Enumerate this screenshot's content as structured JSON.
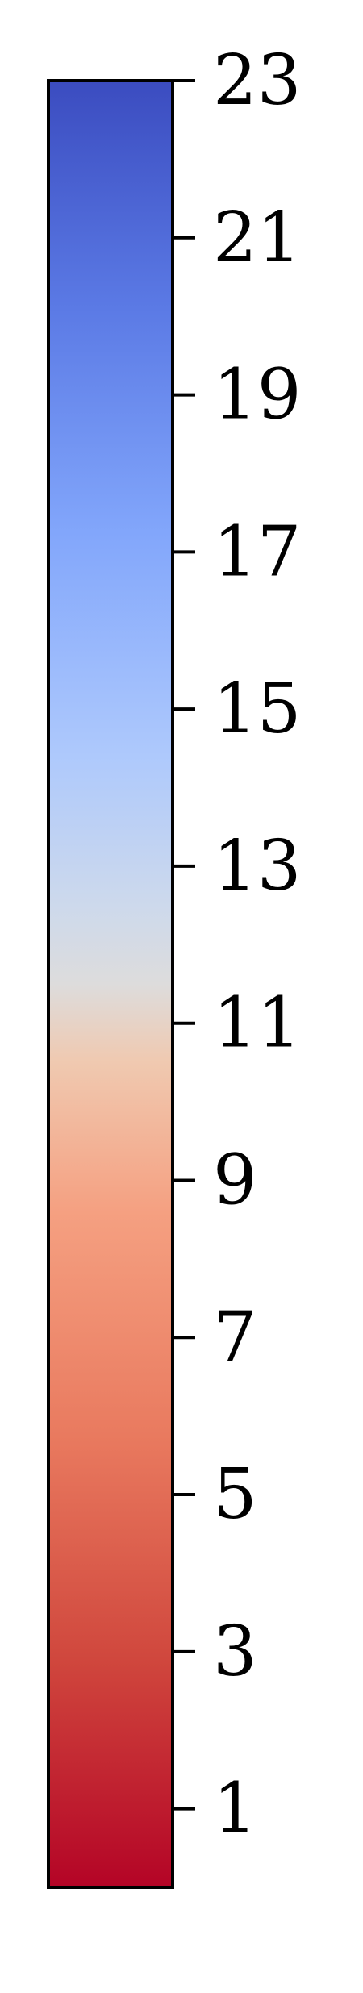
{
  "chart_data": {
    "type": "colorbar",
    "colormap": "coolwarm",
    "orientation": "vertical",
    "range": [
      0,
      23
    ],
    "ticks": [
      1,
      3,
      5,
      7,
      9,
      11,
      13,
      15,
      17,
      19,
      21,
      23
    ],
    "tick_labels": [
      "1",
      "3",
      "5",
      "7",
      "9",
      "11",
      "13",
      "15",
      "17",
      "19",
      "21",
      "23"
    ],
    "color_stops": [
      {
        "value": 0,
        "color": "#b40426"
      },
      {
        "value": 2.9,
        "color": "#d0473d"
      },
      {
        "value": 5.75,
        "color": "#e97a5f"
      },
      {
        "value": 8.6,
        "color": "#f5a081"
      },
      {
        "value": 10.5,
        "color": "#f0c9b0"
      },
      {
        "value": 11.5,
        "color": "#dddcdc"
      },
      {
        "value": 12.5,
        "color": "#cdd9ec"
      },
      {
        "value": 14.4,
        "color": "#aec9fc"
      },
      {
        "value": 17.25,
        "color": "#82a6fb"
      },
      {
        "value": 20.1,
        "color": "#5b7ae5"
      },
      {
        "value": 23,
        "color": "#3b4cc0"
      }
    ]
  }
}
